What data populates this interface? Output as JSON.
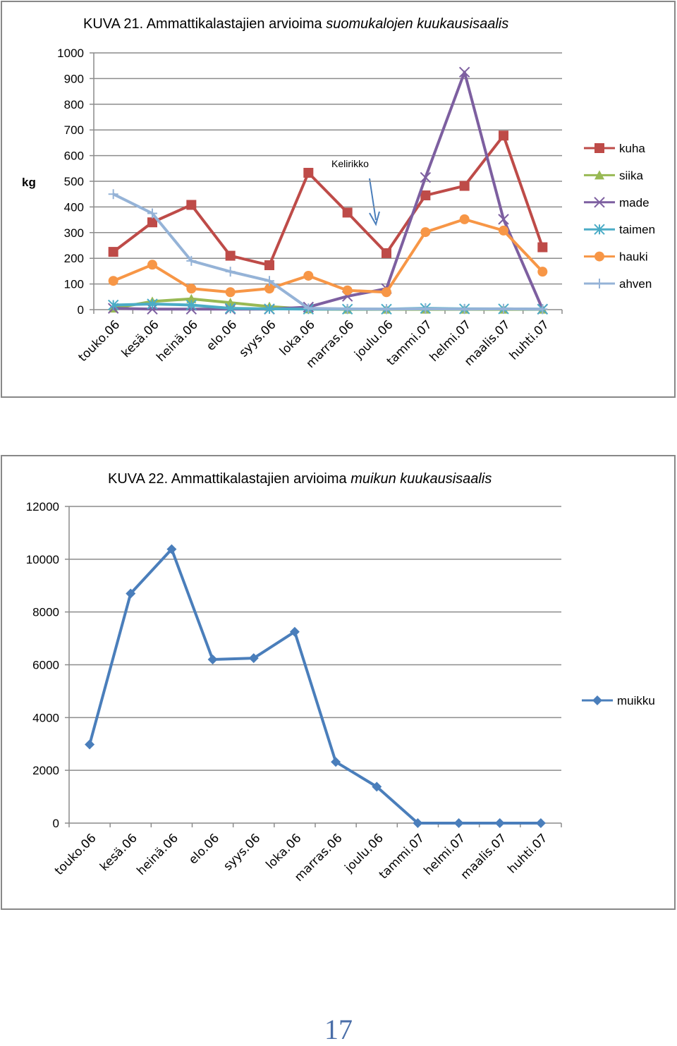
{
  "page_number": "17",
  "chart_data": [
    {
      "type": "line",
      "title_prefix": "KUVA 21. Ammattikalastajien arvioima ",
      "title_italic": "suomukalojen kuukausisaalis",
      "ylabel": "kg",
      "xlabel": "",
      "ylim": [
        0,
        1000
      ],
      "yticks": [
        0,
        100,
        200,
        300,
        400,
        500,
        600,
        700,
        800,
        900,
        1000
      ],
      "grid": true,
      "legend_position": "right",
      "categories": [
        "touko.06",
        "kesä.06",
        "heinä.06",
        "elo.06",
        "syys.06",
        "loka.06",
        "marras.06",
        "joulu.06",
        "tammi.07",
        "helmi.07",
        "maalis.07",
        "huhti.07"
      ],
      "annotation": {
        "text": "Kelirikko",
        "points_to_category": "joulu.06"
      },
      "series": [
        {
          "name": "kuha",
          "color": "#be4b48",
          "marker": "square",
          "values": [
            225,
            340,
            408,
            210,
            173,
            533,
            378,
            220,
            445,
            482,
            678,
            243
          ]
        },
        {
          "name": "siika",
          "color": "#98b954",
          "marker": "triangle",
          "values": [
            5,
            32,
            42,
            27,
            12,
            2,
            1,
            1,
            1,
            1,
            1,
            1
          ]
        },
        {
          "name": "made",
          "color": "#7d5fa0",
          "marker": "x",
          "values": [
            5,
            2,
            2,
            2,
            2,
            10,
            52,
            82,
            515,
            925,
            352,
            2
          ]
        },
        {
          "name": "taimen",
          "color": "#4bacc6",
          "marker": "asterisk",
          "values": [
            18,
            22,
            18,
            5,
            3,
            2,
            2,
            2,
            5,
            3,
            3,
            2
          ]
        },
        {
          "name": "hauki",
          "color": "#f79646",
          "marker": "circle",
          "values": [
            112,
            175,
            82,
            68,
            82,
            132,
            75,
            68,
            302,
            352,
            308,
            148
          ]
        },
        {
          "name": "ahven",
          "color": "#95b3d7",
          "marker": "plus",
          "values": [
            450,
            375,
            190,
            148,
            112,
            5,
            3,
            2,
            3,
            2,
            3,
            2
          ]
        }
      ]
    },
    {
      "type": "line",
      "title_prefix": "KUVA 22. Ammattikalastajien arvioima ",
      "title_italic": "muikun kuukausisaalis",
      "xlabel": "",
      "ylabel": "",
      "ylim": [
        0,
        12000
      ],
      "yticks": [
        0,
        2000,
        4000,
        6000,
        8000,
        10000,
        12000
      ],
      "grid": true,
      "legend_position": "right",
      "categories": [
        "touko.06",
        "kesä.06",
        "heinä.06",
        "elo.06",
        "syys.06",
        "loka.06",
        "marras.06",
        "joulu.06",
        "tammi.07",
        "helmi.07",
        "maalis.07",
        "huhti.07"
      ],
      "series": [
        {
          "name": "muikku",
          "color": "#4a7ebb",
          "marker": "diamond",
          "values": [
            2980,
            8700,
            10380,
            6200,
            6250,
            7250,
            2320,
            1380,
            0,
            0,
            0,
            0
          ]
        }
      ]
    }
  ]
}
